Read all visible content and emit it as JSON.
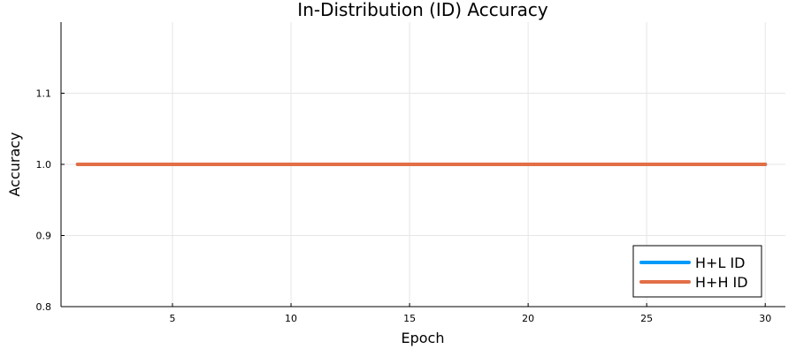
{
  "chart_data": {
    "type": "line",
    "title": "In-Distribution (ID) Accuracy",
    "xlabel": "Epoch",
    "ylabel": "Accuracy",
    "xlim": [
      0.3,
      30.85
    ],
    "ylim": [
      0.8,
      1.2
    ],
    "xticks": [
      5,
      10,
      15,
      20,
      25,
      30
    ],
    "yticks": [
      0.8,
      0.9,
      1.0,
      1.1
    ],
    "ytick_labels": [
      "0.8",
      "0.9",
      "1.0",
      "1.1"
    ],
    "grid": true,
    "legend_position": "bottom-right",
    "x": [
      1,
      2,
      3,
      4,
      5,
      6,
      7,
      8,
      9,
      10,
      11,
      12,
      13,
      14,
      15,
      16,
      17,
      18,
      19,
      20,
      21,
      22,
      23,
      24,
      25,
      26,
      27,
      28,
      29,
      30
    ],
    "series": [
      {
        "name": "H+L ID",
        "color": "#009af9",
        "values": [
          1,
          1,
          1,
          1,
          1,
          1,
          1,
          1,
          1,
          1,
          1,
          1,
          1,
          1,
          1,
          1,
          1,
          1,
          1,
          1,
          1,
          1,
          1,
          1,
          1,
          1,
          1,
          1,
          1,
          1
        ]
      },
      {
        "name": "H+H ID",
        "color": "#e26f46",
        "values": [
          1,
          1,
          1,
          1,
          1,
          1,
          1,
          1,
          1,
          1,
          1,
          1,
          1,
          1,
          1,
          1,
          1,
          1,
          1,
          1,
          1,
          1,
          1,
          1,
          1,
          1,
          1,
          1,
          1,
          1
        ]
      }
    ]
  }
}
